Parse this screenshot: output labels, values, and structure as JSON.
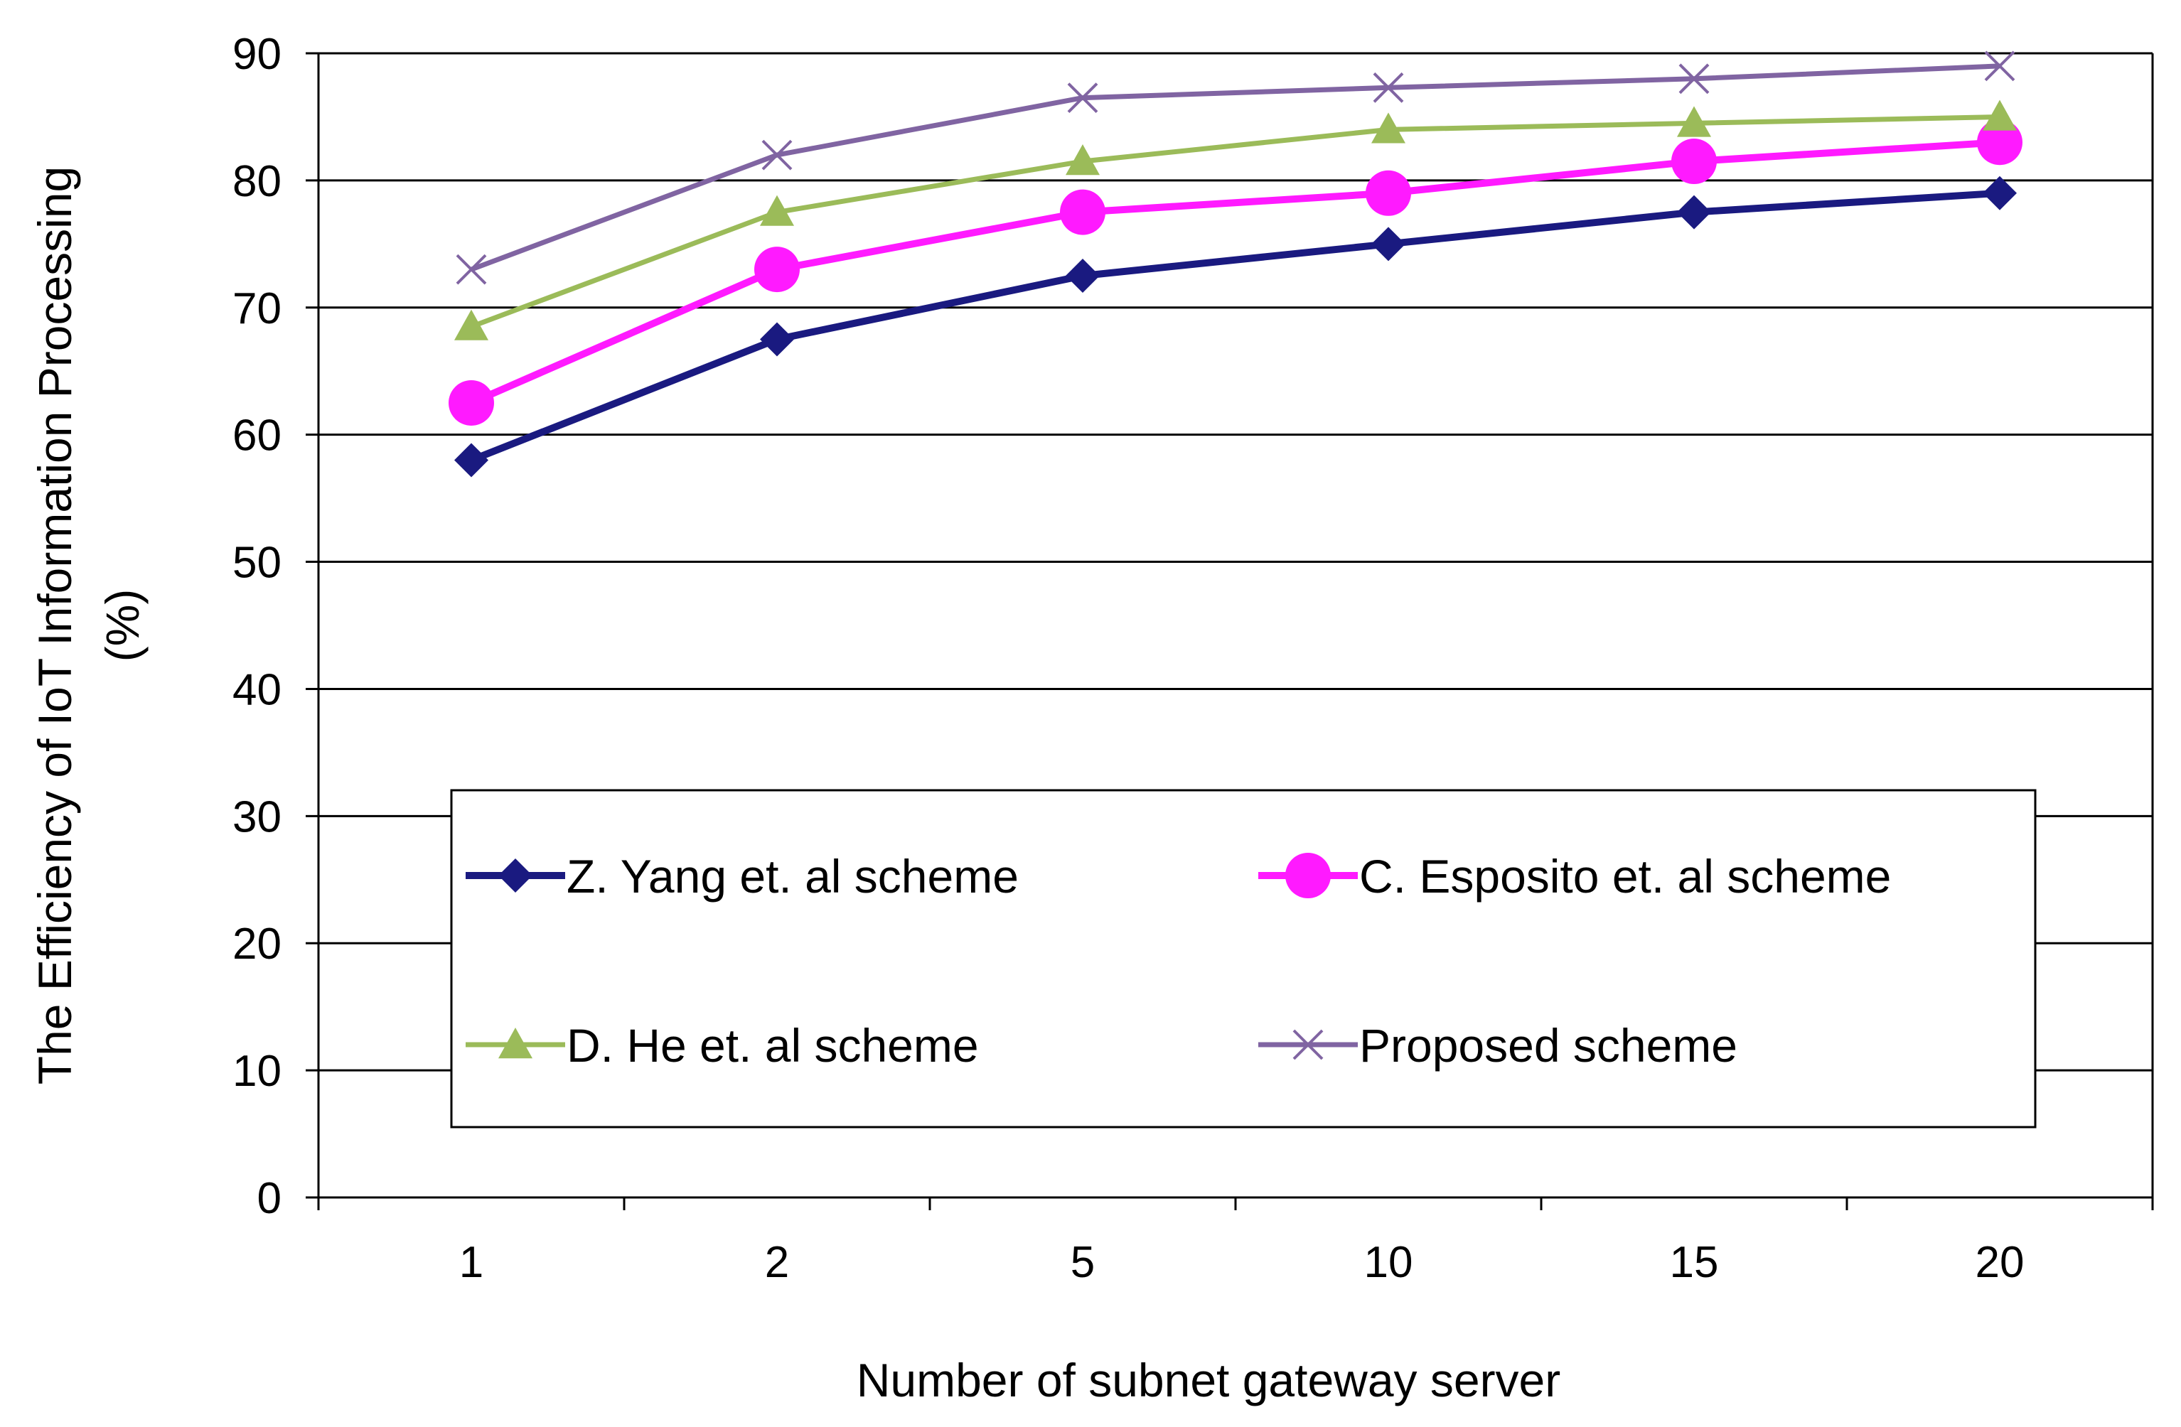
{
  "chart_data": {
    "type": "line",
    "title": "",
    "xlabel": "Number of subnet gateway server",
    "ylabel_line1": "The Efficiency of IoT Information Processing",
    "ylabel_line2": "(%)",
    "categories": [
      "1",
      "2",
      "5",
      "10",
      "15",
      "20"
    ],
    "yticks": [
      "0",
      "10",
      "20",
      "30",
      "40",
      "50",
      "60",
      "70",
      "80",
      "90"
    ],
    "ylim": [
      0,
      90
    ],
    "grid": true,
    "legend_position": "lower-center inside plot",
    "series": [
      {
        "name": "Z. Yang et. al scheme",
        "color": "#1a1a80",
        "marker": "diamond",
        "values": [
          58,
          67.5,
          72.5,
          75,
          77.5,
          79
        ]
      },
      {
        "name": "C. Esposito et. al scheme",
        "color": "#ff1aff",
        "marker": "circle",
        "values": [
          62.5,
          73,
          77.5,
          79,
          81.5,
          83
        ]
      },
      {
        "name": "D. He et. al scheme",
        "color": "#9bbb59",
        "marker": "triangle",
        "values": [
          68.5,
          77.5,
          81.5,
          84,
          84.5,
          85
        ]
      },
      {
        "name": "Proposed scheme",
        "color": "#8064a2",
        "marker": "x",
        "values": [
          73,
          82,
          86.5,
          87.3,
          88,
          89
        ]
      }
    ]
  }
}
